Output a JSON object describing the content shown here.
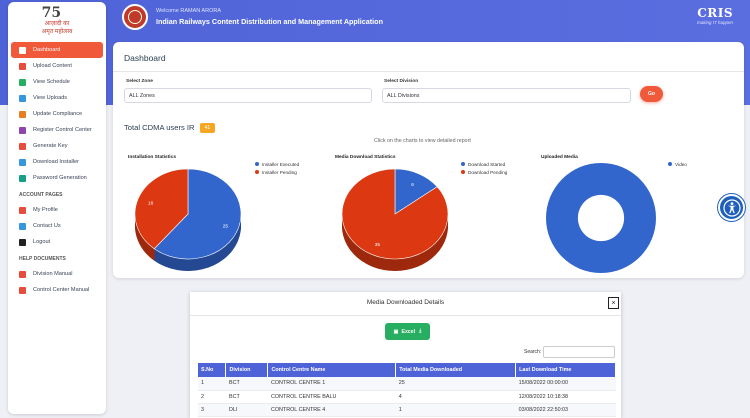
{
  "header": {
    "welcome": "Welcome RAMAN ARORA",
    "app_title": "Indian Railways Content Distribution and Management Application",
    "brand": "CRIS",
    "brand_tagline": "making IT happen"
  },
  "logo": {
    "number": "75",
    "line1": "आज़ादी का",
    "line2": "अमृत महोत्सव"
  },
  "sidebar": {
    "items": [
      {
        "label": "Dashboard",
        "icon": "dashboard-icon",
        "active": true
      },
      {
        "label": "Upload Content",
        "icon": "upload-icon"
      },
      {
        "label": "View Schedule",
        "icon": "calendar-icon"
      },
      {
        "label": "View Uploads",
        "icon": "file-icon"
      },
      {
        "label": "Update Compliance",
        "icon": "edit-icon"
      },
      {
        "label": "Register Control Center",
        "icon": "user-plus-icon"
      },
      {
        "label": "Generate Key",
        "icon": "key-icon"
      },
      {
        "label": "Download Installer",
        "icon": "download-icon"
      },
      {
        "label": "Password Generation",
        "icon": "lock-icon"
      }
    ],
    "section_account": "ACCOUNT PAGES",
    "account_items": [
      {
        "label": "My Profile",
        "icon": "user-icon"
      },
      {
        "label": "Contact Us",
        "icon": "chat-icon"
      },
      {
        "label": "Logout",
        "icon": "lock-icon"
      }
    ],
    "section_help": "HELP DOCUMENTS",
    "help_items": [
      {
        "label": "Division Manual",
        "icon": "pdf-icon"
      },
      {
        "label": "Control Center Manual",
        "icon": "pdf-icon"
      }
    ]
  },
  "dashboard": {
    "title": "Dashboard",
    "zone_label": "Select Zone",
    "zone_value": "ALL Zones",
    "division_label": "Select Division",
    "division_value": "ALL Divisions",
    "go_label": "Go",
    "total_label": "Total CDMA users IR",
    "total_value": "41",
    "hint": "Click on the charts to view detailed report"
  },
  "chart_data": [
    {
      "type": "pie",
      "title": "Installation Statistics",
      "categories": [
        "Installer Executed",
        "Installer Pending"
      ],
      "values": [
        25,
        16
      ],
      "colors": [
        "#3366cc",
        "#dc3912"
      ]
    },
    {
      "type": "pie",
      "title": "Media Download Statistics",
      "categories": [
        "Download Started",
        "Download Pending"
      ],
      "values": [
        6,
        35
      ],
      "colors": [
        "#3366cc",
        "#dc3912"
      ]
    },
    {
      "type": "pie",
      "title": "Uploaded Media",
      "categories": [
        "Video"
      ],
      "values": [
        1
      ],
      "colors": [
        "#3366cc"
      ],
      "donut": true
    }
  ],
  "modal": {
    "title": "Media Downloaded Details",
    "close": "×",
    "excel_label": "Excel",
    "search_label": "Search:",
    "columns": [
      "S.No",
      "Division",
      "Control Centre Name",
      "Total Media Downloaded",
      "Last Download Time"
    ],
    "rows": [
      [
        "1",
        "BCT",
        "CONTROL CENTRE 1",
        "25",
        "15/08/2022 00:00:00"
      ],
      [
        "2",
        "BCT",
        "CONTROL CENTRE BALU",
        "4",
        "12/08/2022 10:18:38"
      ],
      [
        "3",
        "DLI",
        "CONTROL CENTRE 4",
        "1",
        "03/08/2022 22:50:03"
      ]
    ]
  }
}
